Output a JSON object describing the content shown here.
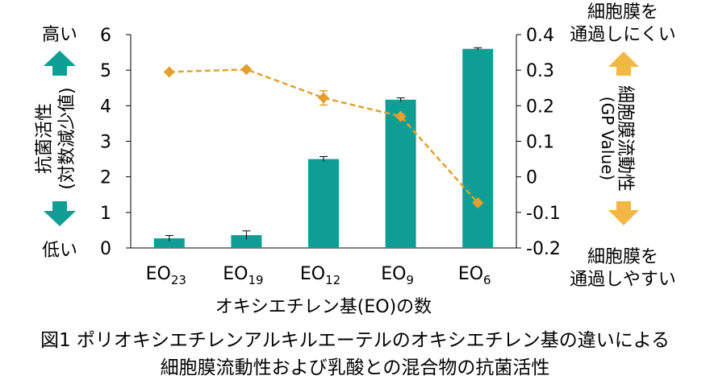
{
  "chart_data": {
    "type": "bar",
    "categories": [
      {
        "base": "EO",
        "sub": "23"
      },
      {
        "base": "EO",
        "sub": "19"
      },
      {
        "base": "EO",
        "sub": "12"
      },
      {
        "base": "EO",
        "sub": "9"
      },
      {
        "base": "EO",
        "sub": "6"
      }
    ],
    "xlabel": "オキシエチレン基(EO)の数",
    "y_left": {
      "ticks": [
        "6",
        "5",
        "4",
        "3",
        "2",
        "1",
        "0"
      ],
      "range": [
        0,
        6
      ],
      "high_label": "高い",
      "low_label": "低い",
      "label_line1": "抗菌活性",
      "label_line2": "(対数減少値)"
    },
    "y_right": {
      "ticks": [
        "0.4",
        "0.3",
        "0.2",
        "0.1",
        "0",
        "-0.1",
        "-0.2"
      ],
      "range": [
        -0.2,
        0.4
      ],
      "label_line1": "細胞膜流動性",
      "label_line2": "(GP Value)",
      "top_label_line1": "細胞膜を",
      "top_label_line2": "通過しにくい",
      "bottom_label_line1": "細胞膜を",
      "bottom_label_line2": "通過しやすい"
    },
    "bar_series": {
      "values": [
        0.27,
        0.36,
        2.5,
        4.17,
        5.6
      ],
      "errors": [
        0.08,
        0.12,
        0.07,
        0.05,
        0.03
      ],
      "color": "#0e9e94"
    },
    "line_series": {
      "values": [
        0.295,
        0.302,
        0.222,
        0.17,
        -0.073
      ],
      "errors": [
        0.0,
        0.0,
        0.02,
        0.0,
        0.0
      ],
      "color": "#e4a02c"
    },
    "arrow_colors": {
      "left": "#0e9e94",
      "right": "#f3b744"
    },
    "caption_line1": "図1 ポリオキシエチレンアルキルエーテルのオキシエチレン基の違いによる",
    "caption_line2": "細胞膜流動性および乳酸との混合物の抗菌活性"
  }
}
